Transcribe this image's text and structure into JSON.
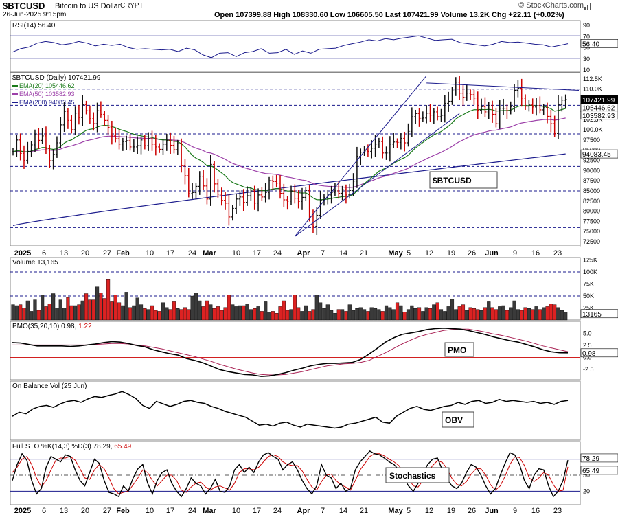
{
  "header": {
    "symbol": "$BTCUSD",
    "name": "Bitcoin to US Dollar",
    "exchange": "CRYPT",
    "date": "26-Jun-2025 9:15pm",
    "ohlc_text": "Open 107399.88  High 108330.60  Low 106605.50  Last 107421.99  Volume 13.2K  Chg +22.11 (+0.02%)",
    "brand": "© StockCharts.com"
  },
  "colors": {
    "up": "#111111",
    "down": "#cc0000",
    "ema20": "#1a7a1a",
    "ema50": "#9c3fa8",
    "ema200": "#1a1a8c",
    "grid": "#1a1a8c",
    "label_bg": "#ffffff"
  },
  "x_axis": {
    "labels": [
      "2025",
      "6",
      "13",
      "20",
      "27",
      "Feb",
      "10",
      "17",
      "24",
      "Mar",
      "10",
      "17",
      "24",
      "Apr",
      "7",
      "14",
      "21",
      "May",
      "5",
      "12",
      "19",
      "26",
      "Jun",
      "9",
      "16",
      "23"
    ],
    "bold": [
      "2025",
      "Feb",
      "Mar",
      "Apr",
      "May",
      "Jun"
    ]
  },
  "rsi": {
    "title": "RSI(14) 56.40",
    "ticks": [
      "90",
      "70",
      "50",
      "30",
      "10"
    ],
    "last_label": "56.40",
    "values": [
      41,
      47,
      50,
      57,
      60,
      58,
      54,
      56,
      60,
      57,
      52,
      55,
      53,
      55,
      49,
      46,
      47,
      46,
      45,
      46,
      42,
      48,
      45,
      36,
      31,
      39,
      40,
      33,
      40,
      42,
      47,
      39,
      40,
      46,
      37,
      43,
      39,
      46,
      47,
      48,
      53,
      56,
      59,
      63,
      61,
      65,
      63,
      66,
      68,
      70,
      66,
      62,
      63,
      64,
      58,
      56,
      54,
      52,
      55,
      60,
      58,
      59,
      57,
      55,
      54,
      50,
      53,
      56
    ]
  },
  "price": {
    "title": "$BTCUSD (Daily) 107421.99",
    "legend": [
      {
        "key": "ema20",
        "label": "EMA(20) 105446.62"
      },
      {
        "key": "ema50",
        "label": "EMA(50) 103582.93"
      },
      {
        "key": "ema200",
        "label": "EMA(200) 94083.45"
      }
    ],
    "ticks": [
      "112.5K",
      "110.0K",
      "107.5K",
      "105.0K",
      "102.5K",
      "100.0K",
      "97500",
      "95000",
      "92500",
      "90000",
      "87500",
      "85000",
      "82500",
      "80000",
      "77500",
      "75000",
      "72500"
    ],
    "badges": [
      {
        "value": 107421.99,
        "text": "107421.99",
        "fill": "#000000",
        "color": "#ffffff"
      },
      {
        "value": 105446.62,
        "text": "105446.62",
        "fill": "#ffffff",
        "color": "#000000"
      },
      {
        "value": 103582.93,
        "text": "103582.93",
        "fill": "#ffffff",
        "color": "#000000"
      },
      {
        "value": 94083.45,
        "text": "94083.45",
        "fill": "#ffffff",
        "color": "#000000"
      }
    ],
    "box_label": "$BTCUSD",
    "hlines": [
      110000,
      106000,
      99000,
      91000,
      85000,
      76000
    ],
    "closes": [
      94600,
      97500,
      94200,
      92500,
      94700,
      96300,
      98800,
      97400,
      98500,
      95400,
      92400,
      94000,
      96800,
      101200,
      104500,
      102300,
      100000,
      104100,
      103000,
      106200,
      104700,
      102700,
      101500,
      104700,
      103800,
      102300,
      100600,
      98500,
      97800,
      96500,
      97100,
      97300,
      95800,
      95800,
      96100,
      97500,
      96100,
      97800,
      96500,
      95800,
      95200,
      96500,
      97400,
      96200,
      95100,
      96600,
      91200,
      88700,
      84300,
      84600,
      86100,
      88600,
      86200,
      83000,
      91500,
      86700,
      84200,
      82700,
      82000,
      78600,
      80700,
      83000,
      83500,
      82200,
      83800,
      85000,
      82000,
      84000,
      83500,
      84600,
      87500,
      87300,
      86900,
      84400,
      82800,
      82500,
      85000,
      83200,
      82400,
      83400,
      85100,
      78800,
      76300,
      79000,
      82700,
      83400,
      84000,
      84600,
      85000,
      84400,
      85300,
      84000,
      85100,
      87400,
      93500,
      94500,
      94800,
      94700,
      95500,
      96500,
      97100,
      94300,
      94300,
      96500,
      97000,
      96900,
      97900,
      96800,
      99600,
      103200,
      104000,
      102800,
      102900,
      104100,
      103600,
      104400,
      103200,
      103500,
      106500,
      107000,
      109600,
      111700,
      109000,
      108000,
      109000,
      108600,
      107800,
      104800,
      105700,
      104400,
      105900,
      103800,
      101500,
      105300,
      105300,
      104700,
      105700,
      109700,
      110200,
      107800,
      105800,
      106100,
      105600,
      105900,
      104900,
      105400,
      103300,
      101500,
      99100,
      106200,
      107300,
      107420
    ]
  },
  "volume": {
    "title": "Volume 13,165",
    "ticks": [
      "125K",
      "100K",
      "75K",
      "50K",
      "25K"
    ],
    "last_label": "13165",
    "values": [
      32,
      30,
      32,
      25,
      40,
      18,
      42,
      20,
      52,
      28,
      34,
      55,
      25,
      42,
      25,
      47,
      30,
      30,
      32,
      40,
      55,
      42,
      42,
      69,
      56,
      45,
      84,
      38,
      52,
      36,
      30,
      58,
      26,
      30,
      46,
      32,
      24,
      22,
      30,
      20,
      18,
      36,
      26,
      22,
      38,
      24,
      22,
      26,
      22,
      50,
      56,
      40,
      28,
      40,
      32,
      24,
      28,
      20,
      26,
      52,
      32,
      28,
      30,
      30,
      34,
      22,
      24,
      28,
      18,
      38,
      16,
      18,
      14,
      28,
      40,
      20,
      22,
      52,
      26,
      18,
      30,
      18,
      22,
      52,
      36,
      24,
      32,
      20,
      14,
      22,
      22,
      18,
      32,
      20,
      24,
      26,
      22,
      18,
      26,
      24,
      22,
      18,
      30,
      26,
      22,
      36,
      30,
      16,
      22,
      30,
      24,
      26,
      18,
      26,
      24,
      32,
      36,
      22,
      18,
      28,
      44,
      22,
      28,
      32,
      20,
      26,
      24,
      22,
      20,
      26,
      38,
      26,
      22,
      28,
      30,
      20,
      26,
      40,
      22,
      20,
      26,
      24,
      22,
      28,
      22,
      26,
      28,
      34,
      32,
      26,
      20,
      16
    ],
    "hlines": [
      100,
      75,
      50,
      25
    ]
  },
  "pmo": {
    "title_prefix": "PMO(35,20,10) 0.98,",
    "title_signal": "1.22",
    "ticks": [
      "5.0",
      "2.5",
      "0.0",
      "-2.5"
    ],
    "last_label": "0.98",
    "box_label": "PMO",
    "pmo": [
      3.1,
      3.0,
      2.7,
      2.4,
      2.4,
      2.4,
      2.4,
      2.3,
      2.4,
      2.6,
      2.8,
      3.1,
      3.3,
      3.2,
      2.9,
      2.5,
      2.2,
      1.6,
      1.2,
      0.8,
      0.5,
      -0.2,
      -0.6,
      -1.1,
      -1.8,
      -2.5,
      -2.9,
      -3.2,
      -3.5,
      -3.6,
      -3.9,
      -3.8,
      -3.5,
      -3.1,
      -2.6,
      -2.2,
      -1.7,
      -1.4,
      -1.2,
      -1.2,
      -1.1,
      -1.0,
      -0.4,
      0.7,
      1.9,
      3.2,
      4.1,
      4.8,
      5.1,
      5.4,
      5.8,
      6.0,
      6.1,
      6.0,
      5.9,
      5.6,
      5.2,
      4.8,
      4.3,
      3.9,
      3.5,
      3.2,
      2.7,
      2.2,
      1.6,
      1.2,
      1.0,
      0.98
    ],
    "signal": [
      2.6,
      2.6,
      2.6,
      2.6,
      2.6,
      2.6,
      2.6,
      2.6,
      2.6,
      2.6,
      2.7,
      2.8,
      2.9,
      2.9,
      2.8,
      2.6,
      2.4,
      2.1,
      1.8,
      1.4,
      1.0,
      0.6,
      0.2,
      -0.3,
      -0.8,
      -1.4,
      -1.9,
      -2.4,
      -2.8,
      -3.2,
      -3.5,
      -3.6,
      -3.6,
      -3.5,
      -3.2,
      -2.9,
      -2.5,
      -2.1,
      -1.7,
      -1.5,
      -1.3,
      -1.2,
      -1.0,
      -0.6,
      0.2,
      1.0,
      1.9,
      2.8,
      3.6,
      4.3,
      4.8,
      5.2,
      5.6,
      5.8,
      5.9,
      5.9,
      5.6,
      5.3,
      4.9,
      4.6,
      4.2,
      3.8,
      3.4,
      2.9,
      2.4,
      2.0,
      1.6,
      1.22
    ]
  },
  "obv": {
    "title": "On Balance Vol (25 Jun)",
    "box_label": "OBV",
    "values": [
      40,
      48,
      45,
      55,
      60,
      62,
      58,
      65,
      70,
      72,
      68,
      75,
      80,
      78,
      82,
      85,
      90,
      84,
      76,
      62,
      56,
      70,
      65,
      60,
      64,
      70,
      72,
      68,
      66,
      60,
      56,
      50,
      46,
      42,
      38,
      30,
      22,
      24,
      20,
      26,
      28,
      22,
      18,
      24,
      22,
      20,
      18,
      16,
      18,
      24,
      26,
      30,
      34,
      38,
      28,
      26,
      40,
      48,
      56,
      60,
      54,
      52,
      56,
      60,
      62,
      68,
      64,
      70,
      72,
      66,
      68,
      74,
      70,
      72,
      70,
      68,
      70,
      66,
      68,
      64,
      70,
      72
    ]
  },
  "sto": {
    "title_prefix": "Full STO %K(14,3) %D(3) 78.29,",
    "title_signal": "65.49",
    "ticks": [
      "80",
      "50",
      "20"
    ],
    "labels": [
      "78.29",
      "65.49"
    ],
    "box_label": "Stochastics",
    "k": [
      40,
      70,
      90,
      78,
      40,
      15,
      25,
      65,
      85,
      80,
      75,
      88,
      85,
      60,
      40,
      30,
      55,
      80,
      72,
      40,
      18,
      15,
      10,
      30,
      20,
      45,
      62,
      70,
      35,
      15,
      40,
      55,
      60,
      35,
      20,
      10,
      25,
      45,
      35,
      30,
      15,
      25,
      42,
      20,
      18,
      30,
      60,
      70,
      55,
      65,
      55,
      75,
      88,
      92,
      85,
      80,
      60,
      70,
      75,
      60,
      40,
      25,
      15,
      30,
      70,
      50,
      45,
      25,
      35,
      20,
      25,
      60,
      75,
      85,
      95,
      90,
      88,
      82,
      75,
      70,
      60,
      45,
      30,
      20,
      35,
      55,
      70,
      80,
      82,
      60,
      42,
      30,
      25,
      35,
      55,
      70,
      65,
      50,
      30,
      15,
      25,
      50,
      72,
      92,
      88,
      70,
      40,
      25,
      50,
      62,
      60,
      30,
      10,
      20,
      40,
      78
    ],
    "d": [
      55,
      65,
      80,
      85,
      70,
      45,
      28,
      40,
      60,
      78,
      82,
      82,
      85,
      78,
      62,
      45,
      42,
      60,
      70,
      62,
      45,
      25,
      15,
      18,
      20,
      32,
      45,
      60,
      55,
      40,
      30,
      40,
      50,
      50,
      40,
      22,
      18,
      28,
      35,
      37,
      28,
      22,
      28,
      30,
      26,
      22,
      35,
      55,
      62,
      62,
      60,
      65,
      75,
      85,
      88,
      85,
      75,
      70,
      68,
      68,
      58,
      42,
      28,
      22,
      38,
      50,
      52,
      40,
      32,
      28,
      22,
      40,
      60,
      72,
      85,
      90,
      90,
      86,
      80,
      75,
      68,
      56,
      44,
      30,
      28,
      40,
      55,
      68,
      77,
      74,
      62,
      44,
      33,
      30,
      38,
      52,
      62,
      62,
      50,
      32,
      22,
      30,
      48,
      70,
      84,
      83,
      68,
      45,
      38,
      45,
      55,
      50,
      32,
      20,
      22,
      65.49
    ]
  }
}
